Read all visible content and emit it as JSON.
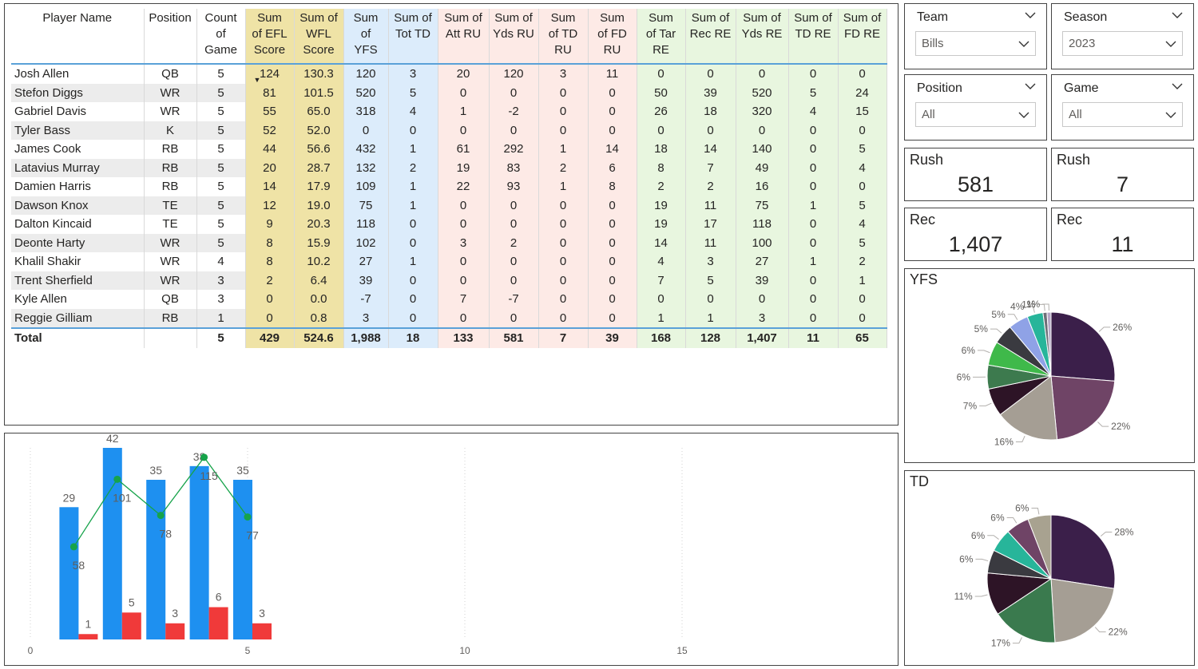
{
  "table": {
    "headers": [
      {
        "lines": [
          "Player Name"
        ],
        "bg": "#ffffff"
      },
      {
        "lines": [
          "Position"
        ],
        "bg": "#ffffff"
      },
      {
        "lines": [
          "Count",
          "of",
          "Game"
        ],
        "bg": "#ffffff"
      },
      {
        "lines": [
          "Sum",
          "of EFL",
          "Score"
        ],
        "bg": "#efe3a6",
        "sorted": true
      },
      {
        "lines": [
          "Sum of",
          "WFL",
          "Score"
        ],
        "bg": "#efe3a6"
      },
      {
        "lines": [
          "Sum",
          "of",
          "YFS"
        ],
        "bg": "#dcecfb"
      },
      {
        "lines": [
          "Sum of",
          "Tot TD"
        ],
        "bg": "#dcecfb"
      },
      {
        "lines": [
          "Sum of",
          "Att RU"
        ],
        "bg": "#fdeae6"
      },
      {
        "lines": [
          "Sum of",
          "Yds RU"
        ],
        "bg": "#fdeae6"
      },
      {
        "lines": [
          "Sum",
          "of TD",
          "RU"
        ],
        "bg": "#fdeae6"
      },
      {
        "lines": [
          "Sum",
          "of FD",
          "RU"
        ],
        "bg": "#fdeae6"
      },
      {
        "lines": [
          "Sum",
          "of Tar",
          "RE"
        ],
        "bg": "#e8f6df"
      },
      {
        "lines": [
          "Sum of",
          "Rec RE"
        ],
        "bg": "#e8f6df"
      },
      {
        "lines": [
          "Sum of",
          "Yds RE"
        ],
        "bg": "#e8f6df"
      },
      {
        "lines": [
          "Sum of",
          "TD RE"
        ],
        "bg": "#e8f6df"
      },
      {
        "lines": [
          "Sum of",
          "FD RE"
        ],
        "bg": "#e8f6df"
      }
    ],
    "rows": [
      [
        "Josh Allen",
        "QB",
        "5",
        "124",
        "130.3",
        "120",
        "3",
        "20",
        "120",
        "3",
        "11",
        "0",
        "0",
        "0",
        "0",
        "0"
      ],
      [
        "Stefon Diggs",
        "WR",
        "5",
        "81",
        "101.5",
        "520",
        "5",
        "0",
        "0",
        "0",
        "0",
        "50",
        "39",
        "520",
        "5",
        "24"
      ],
      [
        "Gabriel Davis",
        "WR",
        "5",
        "55",
        "65.0",
        "318",
        "4",
        "1",
        "-2",
        "0",
        "0",
        "26",
        "18",
        "320",
        "4",
        "15"
      ],
      [
        "Tyler Bass",
        "K",
        "5",
        "52",
        "52.0",
        "0",
        "0",
        "0",
        "0",
        "0",
        "0",
        "0",
        "0",
        "0",
        "0",
        "0"
      ],
      [
        "James Cook",
        "RB",
        "5",
        "44",
        "56.6",
        "432",
        "1",
        "61",
        "292",
        "1",
        "14",
        "18",
        "14",
        "140",
        "0",
        "5"
      ],
      [
        "Latavius Murray",
        "RB",
        "5",
        "20",
        "28.7",
        "132",
        "2",
        "19",
        "83",
        "2",
        "6",
        "8",
        "7",
        "49",
        "0",
        "4"
      ],
      [
        "Damien Harris",
        "RB",
        "5",
        "14",
        "17.9",
        "109",
        "1",
        "22",
        "93",
        "1",
        "8",
        "2",
        "2",
        "16",
        "0",
        "0"
      ],
      [
        "Dawson Knox",
        "TE",
        "5",
        "12",
        "19.0",
        "75",
        "1",
        "0",
        "0",
        "0",
        "0",
        "19",
        "11",
        "75",
        "1",
        "5"
      ],
      [
        "Dalton Kincaid",
        "TE",
        "5",
        "9",
        "20.3",
        "118",
        "0",
        "0",
        "0",
        "0",
        "0",
        "19",
        "17",
        "118",
        "0",
        "4"
      ],
      [
        "Deonte Harty",
        "WR",
        "5",
        "8",
        "15.9",
        "102",
        "0",
        "3",
        "2",
        "0",
        "0",
        "14",
        "11",
        "100",
        "0",
        "5"
      ],
      [
        "Khalil Shakir",
        "WR",
        "4",
        "8",
        "10.2",
        "27",
        "1",
        "0",
        "0",
        "0",
        "0",
        "4",
        "3",
        "27",
        "1",
        "2"
      ],
      [
        "Trent Sherfield",
        "WR",
        "3",
        "2",
        "6.4",
        "39",
        "0",
        "0",
        "0",
        "0",
        "0",
        "7",
        "5",
        "39",
        "0",
        "1"
      ],
      [
        "Kyle Allen",
        "QB",
        "3",
        "0",
        "0.0",
        "-7",
        "0",
        "7",
        "-7",
        "0",
        "0",
        "0",
        "0",
        "0",
        "0",
        "0"
      ],
      [
        "Reggie Gilliam",
        "RB",
        "1",
        "0",
        "0.8",
        "3",
        "0",
        "0",
        "0",
        "0",
        "0",
        "1",
        "1",
        "3",
        "0",
        "0"
      ]
    ],
    "total": [
      "Total",
      "",
      "5",
      "429",
      "524.6",
      "1,988",
      "18",
      "133",
      "581",
      "7",
      "39",
      "168",
      "128",
      "1,407",
      "11",
      "65"
    ]
  },
  "slicers": {
    "team": {
      "title": "Team",
      "value": "Bills"
    },
    "season": {
      "title": "Season",
      "value": "2023"
    },
    "position": {
      "title": "Position",
      "value": "All"
    },
    "game": {
      "title": "Game",
      "value": "All"
    }
  },
  "cards": {
    "rush_yds": {
      "title": "Rush",
      "value": "581"
    },
    "rush_td": {
      "title": "Rush",
      "value": "7"
    },
    "rec_yds": {
      "title": "Rec",
      "value": "1,407"
    },
    "rec_td": {
      "title": "Rec",
      "value": "11"
    }
  },
  "chart_data": [
    {
      "type": "pie",
      "title": "YFS",
      "values": [
        26,
        22,
        16,
        7,
        6,
        6,
        5,
        5,
        4,
        1,
        1
      ],
      "labels": [
        "26%",
        "22%",
        "16%",
        "7%",
        "6%",
        "6%",
        "5%",
        "5%",
        "4%",
        "1%",
        "1%"
      ],
      "colors": [
        "#3b1f4a",
        "#6f4466",
        "#a59e94",
        "#2d1426",
        "#3d7a4e",
        "#3fb94a",
        "#3a3a40",
        "#8fa2e6",
        "#27b59a",
        "#6e6e78",
        "#b6a8c6"
      ]
    },
    {
      "type": "pie",
      "title": "TD",
      "values": [
        28,
        22,
        17,
        11,
        6,
        6,
        6,
        6
      ],
      "labels": [
        "28%",
        "22%",
        "17%",
        "11%",
        "6%",
        "6%",
        "6%",
        "6%"
      ],
      "colors": [
        "#3b1f4a",
        "#a59e94",
        "#3a7a4e",
        "#2d1426",
        "#3a3a40",
        "#27b59a",
        "#6f4466",
        "#a8a290"
      ]
    },
    {
      "type": "bar",
      "x": [
        1,
        2,
        3,
        4,
        5
      ],
      "xticks": [
        "0",
        "5",
        "10",
        "15"
      ],
      "xlim": [
        0,
        20
      ],
      "series": [
        {
          "kind": "bar",
          "values": [
            29,
            42,
            35,
            38,
            35
          ],
          "color": "#1e90f0"
        },
        {
          "kind": "bar",
          "values": [
            1,
            5,
            3,
            6,
            3
          ],
          "color": "#f03a3a"
        },
        {
          "kind": "line",
          "values": [
            58,
            101,
            78,
            115,
            77
          ],
          "color": "#16a34a"
        }
      ]
    }
  ]
}
